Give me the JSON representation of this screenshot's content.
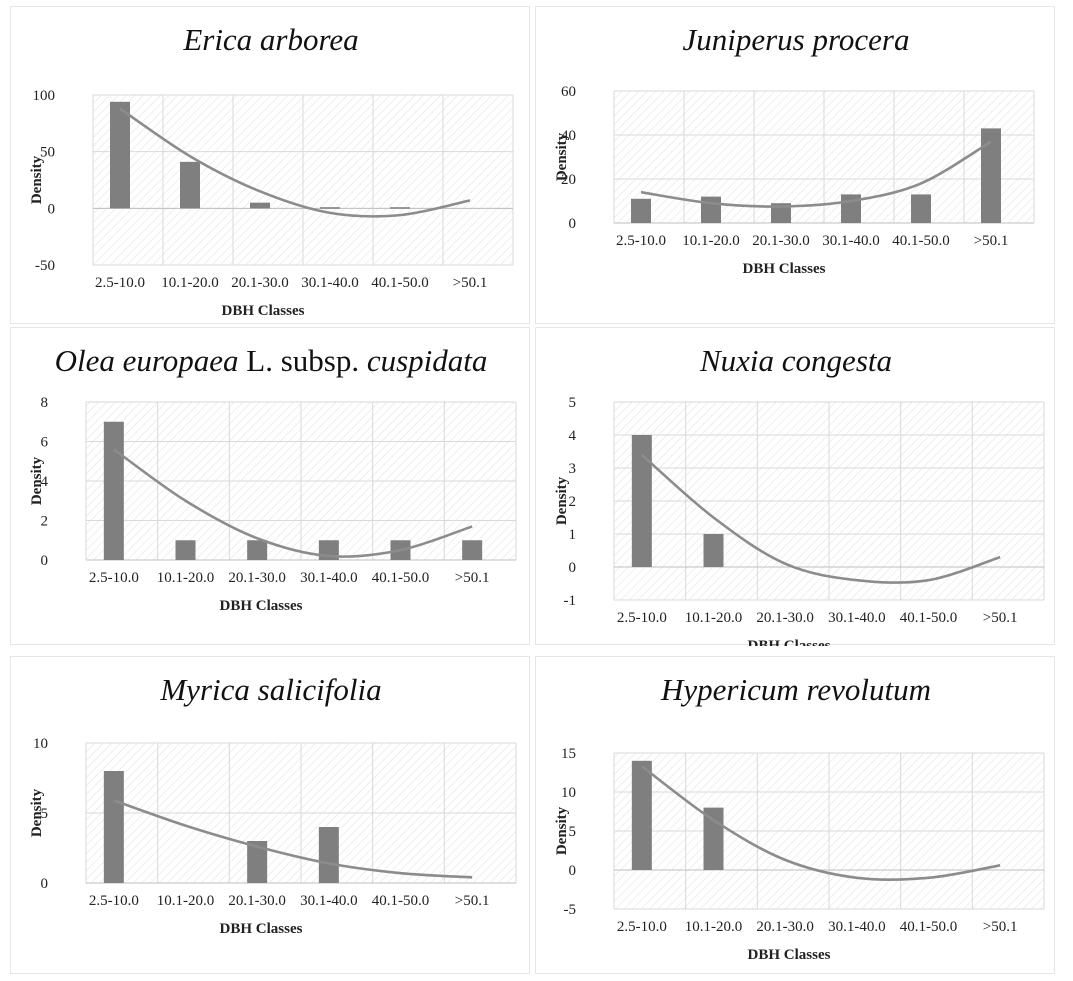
{
  "figure": {
    "ylabel": "Density",
    "xlabel": "DBH Classes"
  },
  "colors": {
    "bar": "#7f7f7f",
    "trend": "#8c8c8c",
    "grid": "#d9d9d9",
    "hatch": "#e4e4e4",
    "axis": "#bfbfbf"
  },
  "chart_data": [
    {
      "type": "bar",
      "title": "Erica arborea",
      "categories": [
        "2.5-10.0",
        "10.1-20.0",
        "20.1-30.0",
        "30.1-40.0",
        "40.1-50.0",
        ">50.1"
      ],
      "values": [
        94,
        41,
        5,
        1,
        1,
        0
      ],
      "trendline": {
        "type": "polynomial",
        "values": [
          88,
          46,
          15,
          -4,
          -6,
          7
        ]
      },
      "ylim": [
        -50,
        100
      ],
      "yticks": [
        -50,
        0,
        50,
        100
      ],
      "xlabel": "DBH Classes",
      "ylabel": "Density",
      "grid": true
    },
    {
      "type": "bar",
      "title": "Juniperus procera",
      "categories": [
        "2.5-10.0",
        "10.1-20.0",
        "20.1-30.0",
        "30.1-40.0",
        "40.1-50.0",
        ">50.1"
      ],
      "values": [
        11,
        12,
        9,
        13,
        13,
        43
      ],
      "trendline": {
        "type": "polynomial",
        "values": [
          14,
          9,
          7.5,
          10,
          18,
          37
        ]
      },
      "ylim": [
        0,
        60
      ],
      "yticks": [
        0,
        20,
        40,
        60
      ],
      "xlabel": "DBH Classes",
      "ylabel": "Density",
      "grid": true
    },
    {
      "type": "bar",
      "title": "Olea europaea L. subsp. cuspidata",
      "categories": [
        "2.5-10.0",
        "10.1-20.0",
        "20.1-30.0",
        "30.1-40.0",
        "40.1-50.0",
        ">50.1"
      ],
      "values": [
        7,
        1,
        1,
        1,
        1,
        1
      ],
      "trendline": {
        "type": "polynomial",
        "values": [
          5.6,
          3,
          1.1,
          0.2,
          0.5,
          1.7
        ]
      },
      "ylim": [
        0,
        8
      ],
      "yticks": [
        0,
        2,
        4,
        6,
        8
      ],
      "xlabel": "DBH Classes",
      "ylabel": "Density",
      "grid": true
    },
    {
      "type": "bar",
      "title": "Nuxia congesta",
      "categories": [
        "2.5-10.0",
        "10.1-20.0",
        "20.1-30.0",
        "30.1-40.0",
        "40.1-50.0",
        ">50.1"
      ],
      "values": [
        4,
        1,
        0,
        0,
        0,
        0
      ],
      "trendline": {
        "type": "polynomial",
        "values": [
          3.4,
          1.5,
          0.1,
          -0.4,
          -0.4,
          0.3
        ]
      },
      "ylim": [
        -1,
        5
      ],
      "yticks": [
        -1,
        0,
        1,
        2,
        3,
        4,
        5
      ],
      "xlabel": "DBH Classes",
      "ylabel": "Density",
      "grid": true
    },
    {
      "type": "bar",
      "title": "Myrica salicifolia",
      "categories": [
        "2.5-10.0",
        "10.1-20.0",
        "20.1-30.0",
        "30.1-40.0",
        "40.1-50.0",
        ">50.1"
      ],
      "values": [
        8,
        0,
        3,
        4,
        0,
        0
      ],
      "trendline": {
        "type": "polynomial",
        "values": [
          5.9,
          4.1,
          2.6,
          1.4,
          0.7,
          0.4
        ]
      },
      "ylim": [
        0,
        10
      ],
      "yticks": [
        0,
        5,
        10
      ],
      "xlabel": "DBH Classes",
      "ylabel": "Density",
      "grid": true
    },
    {
      "type": "bar",
      "title": "Hypericum revolutum",
      "categories": [
        "2.5-10.0",
        "10.1-20.0",
        "20.1-30.0",
        "30.1-40.0",
        "40.1-50.0",
        ">50.1"
      ],
      "values": [
        14,
        8,
        0,
        0,
        0,
        0
      ],
      "trendline": {
        "type": "polynomial",
        "values": [
          13.3,
          6.4,
          1.3,
          -1,
          -1,
          0.6
        ]
      },
      "ylim": [
        -5,
        15
      ],
      "yticks": [
        -5,
        0,
        5,
        10,
        15
      ],
      "xlabel": "DBH Classes",
      "ylabel": "Density",
      "grid": true
    }
  ]
}
